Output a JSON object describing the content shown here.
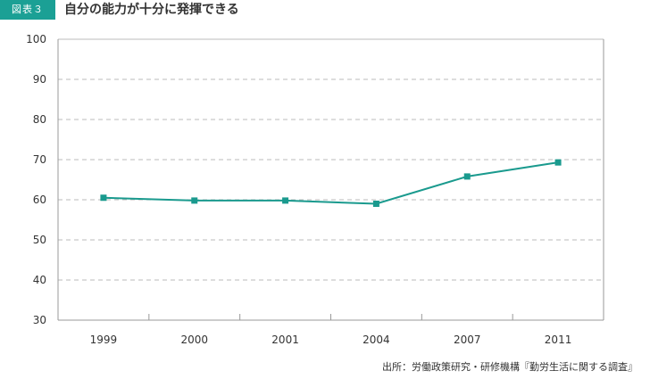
{
  "header": {
    "figure_label": "図表３",
    "title": "自分の能力が十分に発揮できる"
  },
  "source": "出所：労働政策研究・研修機構『勤労生活に関する調査』",
  "colors": {
    "accent": "#1ba095",
    "line": "#1a9a8e",
    "grid": "#bbbbbb",
    "axis": "#999999"
  },
  "chart_data": {
    "type": "line",
    "categories": [
      "1999",
      "2000",
      "2001",
      "2004",
      "2007",
      "2011"
    ],
    "series": [
      {
        "values": [
          60.5,
          59.8,
          59.8,
          59.0,
          65.8,
          69.3
        ]
      }
    ],
    "title": "自分の能力が十分に発揮できる",
    "xlabel": "",
    "ylabel": "",
    "ylim": [
      30,
      100
    ],
    "yticks": [
      30,
      40,
      50,
      60,
      70,
      80,
      90,
      100
    ],
    "grid": true,
    "legend": "none"
  }
}
